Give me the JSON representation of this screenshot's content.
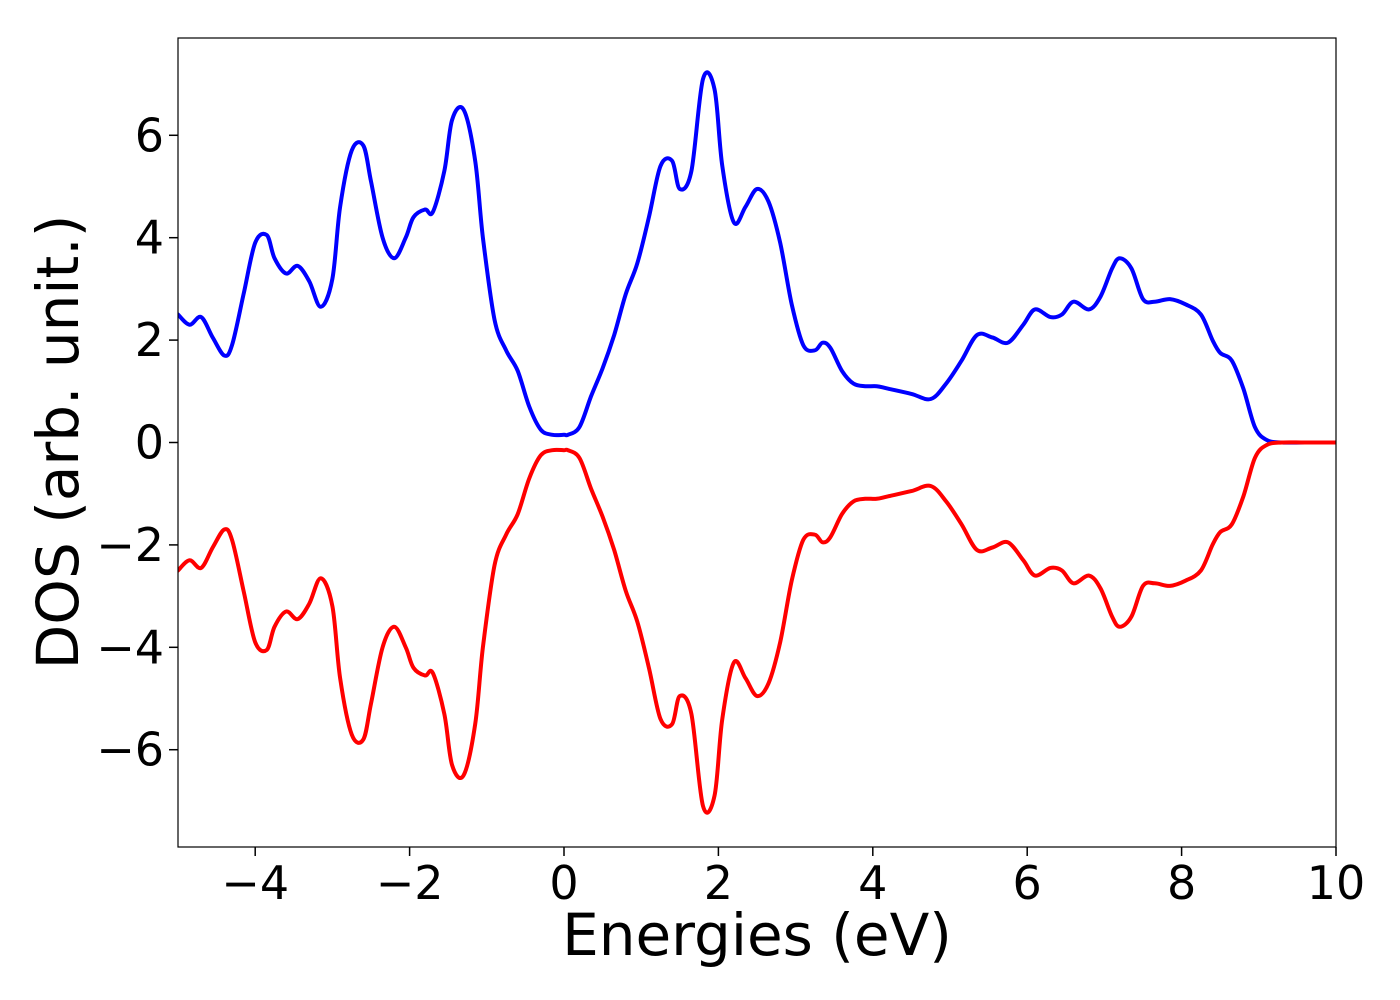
{
  "chart_data": {
    "type": "line",
    "title": "",
    "xlabel": "Energies (eV)",
    "ylabel": "DOS (arb. unit.)",
    "xlim": [
      -5,
      10
    ],
    "ylim": [
      -7.9,
      7.9
    ],
    "xticks": [
      -4,
      -2,
      0,
      2,
      4,
      6,
      8,
      10
    ],
    "yticks": [
      -6,
      -4,
      -2,
      0,
      2,
      4,
      6
    ],
    "xtick_labels": [
      "−4",
      "−2",
      "0",
      "2",
      "4",
      "6",
      "8",
      "10"
    ],
    "ytick_labels": [
      "−6",
      "−4",
      "−2",
      "0",
      "2",
      "4",
      "6"
    ],
    "grid": false,
    "legend": "none",
    "series": [
      {
        "color": "#0000ff",
        "x": [
          -5.0,
          -4.85,
          -4.7,
          -4.55,
          -4.4,
          -4.3,
          -4.15,
          -4.0,
          -3.85,
          -3.75,
          -3.6,
          -3.45,
          -3.3,
          -3.15,
          -3.0,
          -2.9,
          -2.75,
          -2.6,
          -2.5,
          -2.35,
          -2.2,
          -2.05,
          -1.95,
          -1.8,
          -1.7,
          -1.55,
          -1.45,
          -1.3,
          -1.15,
          -1.05,
          -0.9,
          -0.75,
          -0.6,
          -0.45,
          -0.3,
          -0.15,
          0.0,
          0.05,
          0.2,
          0.35,
          0.5,
          0.65,
          0.8,
          0.95,
          1.1,
          1.25,
          1.4,
          1.5,
          1.65,
          1.8,
          1.95,
          2.05,
          2.2,
          2.35,
          2.5,
          2.65,
          2.8,
          2.95,
          3.1,
          3.25,
          3.35,
          3.45,
          3.6,
          3.75,
          3.9,
          4.05,
          4.2,
          4.5,
          4.75,
          4.95,
          5.15,
          5.35,
          5.55,
          5.75,
          5.95,
          6.1,
          6.3,
          6.45,
          6.6,
          6.8,
          6.95,
          7.1,
          7.2,
          7.35,
          7.5,
          7.65,
          7.85,
          8.05,
          8.25,
          8.4,
          8.5,
          8.65,
          8.8,
          8.95,
          9.1,
          9.3,
          9.6,
          10.0
        ],
        "values": [
          2.5,
          2.3,
          2.45,
          2.05,
          1.7,
          1.9,
          2.9,
          3.9,
          4.05,
          3.6,
          3.3,
          3.45,
          3.15,
          2.65,
          3.2,
          4.6,
          5.7,
          5.8,
          5.1,
          4.0,
          3.6,
          4.0,
          4.4,
          4.55,
          4.5,
          5.3,
          6.3,
          6.5,
          5.5,
          4.0,
          2.4,
          1.8,
          1.4,
          0.7,
          0.25,
          0.15,
          0.15,
          0.15,
          0.3,
          0.9,
          1.45,
          2.1,
          2.9,
          3.5,
          4.4,
          5.4,
          5.5,
          4.95,
          5.3,
          7.1,
          6.9,
          5.4,
          4.3,
          4.6,
          4.95,
          4.7,
          3.9,
          2.7,
          1.9,
          1.8,
          1.95,
          1.85,
          1.4,
          1.15,
          1.1,
          1.1,
          1.05,
          0.95,
          0.85,
          1.15,
          1.6,
          2.1,
          2.05,
          1.95,
          2.3,
          2.6,
          2.45,
          2.5,
          2.75,
          2.6,
          2.85,
          3.4,
          3.6,
          3.4,
          2.8,
          2.75,
          2.8,
          2.7,
          2.5,
          2.0,
          1.75,
          1.6,
          1.05,
          0.3,
          0.05,
          0.0,
          0.0,
          0.0
        ]
      },
      {
        "color": "#ff0000",
        "x": [
          -5.0,
          -4.85,
          -4.7,
          -4.55,
          -4.4,
          -4.3,
          -4.15,
          -4.0,
          -3.85,
          -3.75,
          -3.6,
          -3.45,
          -3.3,
          -3.15,
          -3.0,
          -2.9,
          -2.75,
          -2.6,
          -2.5,
          -2.35,
          -2.2,
          -2.05,
          -1.95,
          -1.8,
          -1.7,
          -1.55,
          -1.45,
          -1.3,
          -1.15,
          -1.05,
          -0.9,
          -0.75,
          -0.6,
          -0.45,
          -0.3,
          -0.15,
          0.0,
          0.05,
          0.2,
          0.35,
          0.5,
          0.65,
          0.8,
          0.95,
          1.1,
          1.25,
          1.4,
          1.5,
          1.65,
          1.8,
          1.95,
          2.05,
          2.2,
          2.35,
          2.5,
          2.65,
          2.8,
          2.95,
          3.1,
          3.25,
          3.35,
          3.45,
          3.6,
          3.75,
          3.9,
          4.05,
          4.2,
          4.5,
          4.75,
          4.95,
          5.15,
          5.35,
          5.55,
          5.75,
          5.95,
          6.1,
          6.3,
          6.45,
          6.6,
          6.8,
          6.95,
          7.1,
          7.2,
          7.35,
          7.5,
          7.65,
          7.85,
          8.05,
          8.25,
          8.4,
          8.5,
          8.65,
          8.8,
          8.95,
          9.1,
          9.3,
          9.6,
          10.0
        ],
        "values": [
          -2.5,
          -2.3,
          -2.45,
          -2.05,
          -1.7,
          -1.9,
          -2.9,
          -3.9,
          -4.05,
          -3.6,
          -3.3,
          -3.45,
          -3.15,
          -2.65,
          -3.2,
          -4.6,
          -5.7,
          -5.8,
          -5.1,
          -4.0,
          -3.6,
          -4.0,
          -4.4,
          -4.55,
          -4.5,
          -5.3,
          -6.3,
          -6.5,
          -5.5,
          -4.0,
          -2.4,
          -1.8,
          -1.4,
          -0.7,
          -0.25,
          -0.15,
          -0.15,
          -0.15,
          -0.3,
          -0.9,
          -1.45,
          -2.1,
          -2.9,
          -3.5,
          -4.4,
          -5.4,
          -5.5,
          -4.95,
          -5.3,
          -7.1,
          -6.9,
          -5.4,
          -4.3,
          -4.6,
          -4.95,
          -4.7,
          -3.9,
          -2.7,
          -1.9,
          -1.8,
          -1.95,
          -1.85,
          -1.4,
          -1.15,
          -1.1,
          -1.1,
          -1.05,
          -0.95,
          -0.85,
          -1.15,
          -1.6,
          -2.1,
          -2.05,
          -1.95,
          -2.3,
          -2.6,
          -2.45,
          -2.5,
          -2.75,
          -2.6,
          -2.85,
          -3.4,
          -3.6,
          -3.4,
          -2.8,
          -2.75,
          -2.8,
          -2.7,
          -2.5,
          -2.0,
          -1.75,
          -1.6,
          -1.05,
          -0.3,
          -0.05,
          0.0,
          0.0,
          0.0
        ]
      }
    ]
  }
}
